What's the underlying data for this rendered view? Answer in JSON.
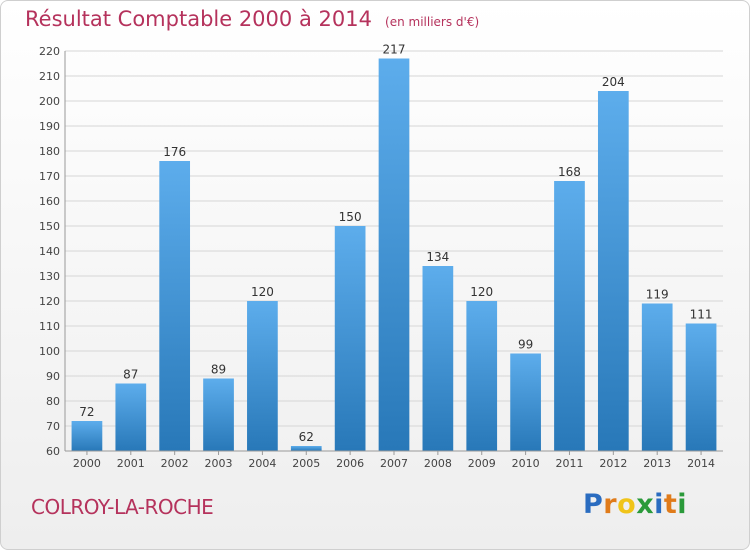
{
  "chart_data": {
    "type": "bar",
    "title": "Résultat Comptable 2000 à 2014",
    "subtitle": "(en milliers d'€)",
    "categories": [
      "2000",
      "2001",
      "2002",
      "2003",
      "2004",
      "2005",
      "2006",
      "2007",
      "2008",
      "2009",
      "2010",
      "2011",
      "2012",
      "2013",
      "2014"
    ],
    "values": [
      72,
      87,
      176,
      89,
      120,
      62,
      150,
      217,
      134,
      120,
      99,
      168,
      204,
      119,
      111
    ],
    "ylim": [
      60,
      220
    ],
    "ytick_step": 10,
    "grid": true,
    "bar_color_top": "#5dadec",
    "bar_color_bottom": "#2878b8"
  },
  "footer": {
    "town": "COLROY-LA-ROCHE",
    "logo_letters": [
      {
        "ch": "P",
        "color": "#2a6cc0"
      },
      {
        "ch": "r",
        "color": "#e07b1a"
      },
      {
        "ch": "o",
        "color": "#f0c419"
      },
      {
        "ch": "x",
        "color": "#2a9a3a"
      },
      {
        "ch": "i",
        "color": "#2a6cc0"
      },
      {
        "ch": "t",
        "color": "#e07b1a"
      },
      {
        "ch": "i",
        "color": "#2a9a3a"
      }
    ]
  }
}
